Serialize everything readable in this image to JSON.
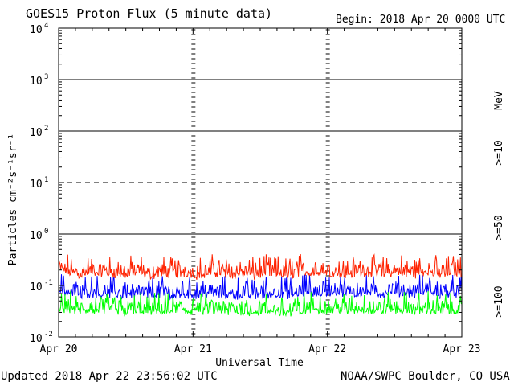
{
  "header": {
    "title": "GOES15 Proton Flux (5 minute data)",
    "begin": "Begin: 2018 Apr 20 0000 UTC"
  },
  "footer": {
    "updated": "Updated 2018 Apr 22 23:56:02 UTC",
    "credit": "NOAA/SWPC Boulder, CO USA"
  },
  "colors": {
    "background": "#ffffff",
    "axes": "#000000",
    "ge10": "#ff2200",
    "ge50": "#0000ff",
    "ge100": "#00ff00"
  },
  "chart_data": {
    "type": "line",
    "title": "GOES15 Proton Flux (5 minute data)",
    "xlabel": "Universal Time",
    "ylabel": "Particles cm⁻²s⁻¹sr⁻¹",
    "yscale": "log",
    "ylim": [
      0.01,
      10000
    ],
    "x_ticks": [
      "Apr 20",
      "Apr 21",
      "Apr 22",
      "Apr 23"
    ],
    "y_ticks": [
      {
        "base": "10",
        "exp": "-2"
      },
      {
        "base": "10",
        "exp": "-1"
      },
      {
        "base": "10",
        "exp": "0"
      },
      {
        "base": "10",
        "exp": "1"
      },
      {
        "base": "10",
        "exp": "2"
      },
      {
        "base": "10",
        "exp": "3"
      },
      {
        "base": "10",
        "exp": "4"
      }
    ],
    "reference_lines": [
      1,
      10,
      100,
      1000
    ],
    "legend": {
      "unit": "MeV",
      "position": "right"
    },
    "series": [
      {
        "name": ">=10",
        "color": "#ff2200",
        "values": [
          0.19,
          0.17,
          0.16,
          0.17,
          0.17,
          0.16,
          0.16,
          0.17,
          0.15,
          0.17,
          0.16,
          0.17,
          0.15,
          0.17,
          0.17,
          0.16,
          0.16,
          0.15,
          0.17,
          0.16,
          0.15,
          0.18,
          0.17,
          0.17,
          0.17,
          0.16,
          0.17,
          0.17,
          0.16,
          0.17,
          0.17,
          0.16,
          0.18,
          0.16,
          0.17,
          0.16
        ]
      },
      {
        "name": ">=50",
        "color": "#0000ff",
        "values": [
          0.075,
          0.07,
          0.066,
          0.068,
          0.066,
          0.064,
          0.063,
          0.067,
          0.064,
          0.068,
          0.062,
          0.066,
          0.062,
          0.067,
          0.066,
          0.063,
          0.062,
          0.063,
          0.065,
          0.064,
          0.062,
          0.07,
          0.072,
          0.068,
          0.07,
          0.068,
          0.07,
          0.07,
          0.066,
          0.071,
          0.069,
          0.067,
          0.072,
          0.065,
          0.068,
          0.066
        ]
      },
      {
        "name": ">=100",
        "color": "#00ff00",
        "values": [
          0.034,
          0.033,
          0.031,
          0.032,
          0.031,
          0.031,
          0.03,
          0.032,
          0.03,
          0.031,
          0.03,
          0.031,
          0.03,
          0.032,
          0.031,
          0.03,
          0.03,
          0.029,
          0.031,
          0.03,
          0.029,
          0.032,
          0.033,
          0.032,
          0.033,
          0.032,
          0.032,
          0.033,
          0.031,
          0.033,
          0.032,
          0.031,
          0.033,
          0.031,
          0.032,
          0.031
        ]
      }
    ]
  }
}
